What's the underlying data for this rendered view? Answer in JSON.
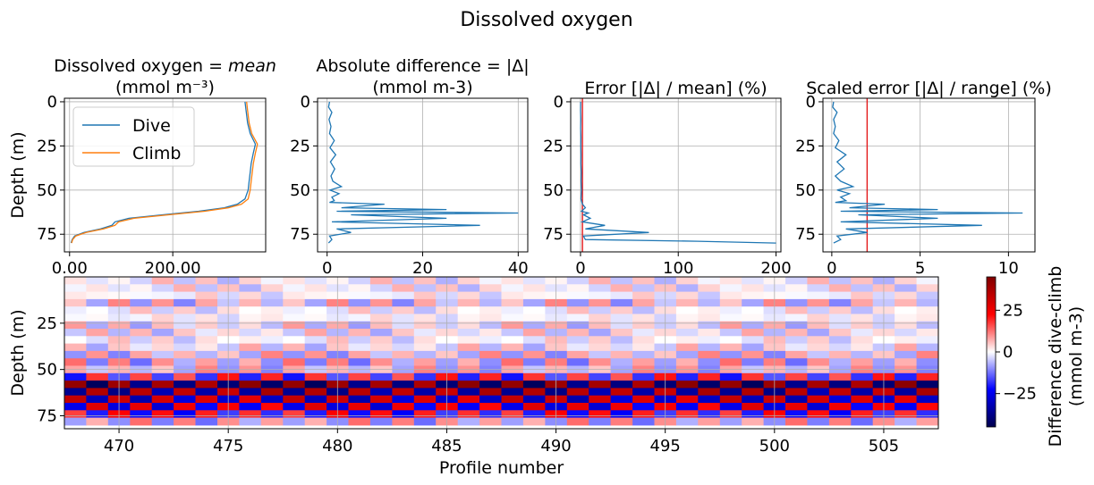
{
  "figure_title": "Dissolved oxygen",
  "colors": {
    "dive": "#1f77b4",
    "climb": "#ff7f0e",
    "threshold": "#e41a1c"
  },
  "chart_data": [
    {
      "type": "line",
      "title_line1": "Dissolved oxygen",
      "title_math": "= mean",
      "title_line2": "(mmol m⁻³)",
      "ylabel": "Depth (m)",
      "xlim": [
        -10,
        380
      ],
      "ylim": [
        85,
        -2
      ],
      "xticks": [
        0,
        200
      ],
      "xtick_labels": [
        "0.00",
        "200.00"
      ],
      "yticks": [
        0,
        25,
        50,
        75
      ],
      "grid": true,
      "legend": {
        "location": "upper-left",
        "entries": [
          "Dive",
          "Climb"
        ]
      },
      "series": [
        {
          "name": "Dive",
          "color": "#1f77b4",
          "x": [
            340,
            342,
            345,
            350,
            360,
            356,
            352,
            350,
            348,
            346,
            340,
            325,
            300,
            250,
            180,
            115,
            88,
            82,
            60,
            28,
            10,
            5,
            3
          ],
          "y": [
            0,
            5,
            12,
            18,
            24,
            29,
            35,
            40,
            45,
            50,
            55,
            58,
            60,
            62,
            64,
            66,
            68,
            70,
            72,
            74,
            76,
            78,
            80
          ]
        },
        {
          "name": "Climb",
          "color": "#ff7f0e",
          "x": [
            343,
            345,
            348,
            353,
            364,
            360,
            356,
            354,
            352,
            350,
            346,
            333,
            308,
            262,
            192,
            125,
            95,
            88,
            66,
            32,
            12,
            6,
            4
          ],
          "y": [
            0,
            5,
            12,
            18,
            24,
            29,
            35,
            40,
            45,
            50,
            55,
            58,
            60,
            62,
            64,
            66,
            68,
            70,
            72,
            74,
            76,
            78,
            80
          ]
        }
      ]
    },
    {
      "type": "line",
      "title_line1": "Absolute difference = |Δ|",
      "title_line2": "(mmol m-3)",
      "xlim": [
        -2,
        42
      ],
      "ylim": [
        85,
        -2
      ],
      "xticks": [
        0,
        20,
        40
      ],
      "yticks": [
        0,
        25,
        50,
        75
      ],
      "grid": true,
      "series": [
        {
          "name": "",
          "color": "#1f77b4",
          "x": [
            0.5,
            0.3,
            1.0,
            0.4,
            0.8,
            0.5,
            1.5,
            0.6,
            1.8,
            0.7,
            1.6,
            0.8,
            1.2,
            3.0,
            0.6,
            2.5,
            1.0,
            1.5,
            0.5,
            12,
            3,
            25,
            2,
            40,
            5,
            25,
            1,
            32,
            2,
            5,
            0.5,
            1,
            0.3
          ],
          "y": [
            0,
            3,
            6,
            10,
            14,
            18,
            22,
            26,
            30,
            34,
            38,
            42,
            45,
            48,
            50,
            52,
            54,
            56,
            57,
            58,
            60,
            61,
            62,
            63,
            64,
            66,
            68,
            70,
            72,
            74,
            76,
            78,
            80
          ]
        }
      ]
    },
    {
      "type": "line",
      "title_line1": "Error [|Δ| / mean] (%)",
      "xlim": [
        -10,
        205
      ],
      "ylim": [
        85,
        -2
      ],
      "xticks": [
        0,
        100,
        200
      ],
      "yticks": [
        0,
        25,
        50,
        75
      ],
      "grid": true,
      "threshold_x": 2,
      "series": [
        {
          "name": "",
          "color": "#1f77b4",
          "x": [
            0.2,
            0.1,
            0.3,
            0.2,
            0.4,
            0.3,
            0.5,
            0.4,
            0.8,
            0.6,
            1.0,
            0.5,
            2.0,
            5,
            1,
            8,
            3,
            10,
            2,
            25,
            5,
            70,
            3,
            5,
            120,
            200
          ],
          "y": [
            0,
            5,
            10,
            15,
            20,
            25,
            30,
            35,
            40,
            45,
            50,
            55,
            58,
            60,
            62,
            63,
            64,
            66,
            68,
            70,
            72,
            74,
            76,
            78,
            79,
            80
          ]
        }
      ]
    },
    {
      "type": "line",
      "title_line1": "Scaled error [|Δ| / range] (%)",
      "xlim": [
        -0.5,
        11.5
      ],
      "ylim": [
        85,
        -2
      ],
      "xticks": [
        0,
        5,
        10
      ],
      "yticks": [
        0,
        25,
        50,
        75
      ],
      "grid": true,
      "threshold_x": 2,
      "series": [
        {
          "name": "",
          "color": "#1f77b4",
          "x": [
            0.1,
            0.05,
            0.3,
            0.1,
            0.2,
            0.1,
            0.4,
            0.2,
            0.8,
            0.3,
            0.7,
            0.2,
            0.5,
            1.2,
            0.3,
            1.0,
            0.5,
            0.8,
            0.2,
            3,
            1,
            6,
            0.5,
            10.8,
            1.5,
            6,
            0.5,
            8.5,
            0.8,
            2,
            0.3,
            0.5,
            0.1
          ],
          "y": [
            0,
            3,
            6,
            10,
            14,
            18,
            22,
            26,
            30,
            34,
            38,
            42,
            45,
            48,
            50,
            52,
            54,
            56,
            57,
            58,
            60,
            61,
            62,
            63,
            64,
            66,
            68,
            70,
            72,
            74,
            76,
            78,
            80
          ]
        }
      ]
    },
    {
      "type": "heatmap",
      "xlabel": "Profile number",
      "ylabel": "Depth (m)",
      "xlim": [
        467.5,
        507.5
      ],
      "ylim": [
        82,
        0
      ],
      "xticks": [
        470,
        475,
        480,
        485,
        490,
        495,
        500,
        505
      ],
      "yticks": [
        25,
        50,
        75
      ],
      "colorbar": {
        "label_line1": "Difference dive-climb",
        "label_line2": "(mmol m-3)",
        "range": [
          -45,
          45
        ],
        "ticks": [
          25,
          0,
          -25
        ],
        "cmap": "seismic"
      },
      "profiles_start": 468,
      "profiles_end": 507,
      "depth_levels": [
        2,
        6,
        10,
        14,
        18,
        22,
        26,
        30,
        34,
        38,
        42,
        46,
        50,
        54,
        58,
        62,
        66,
        70,
        74,
        78
      ],
      "row_pattern": [
        4,
        -4,
        2,
        8,
        -3,
        1,
        6,
        -5,
        3,
        5,
        -8,
        10,
        8,
        -18,
        40,
        -35,
        30,
        -25,
        20,
        -10
      ]
    }
  ]
}
